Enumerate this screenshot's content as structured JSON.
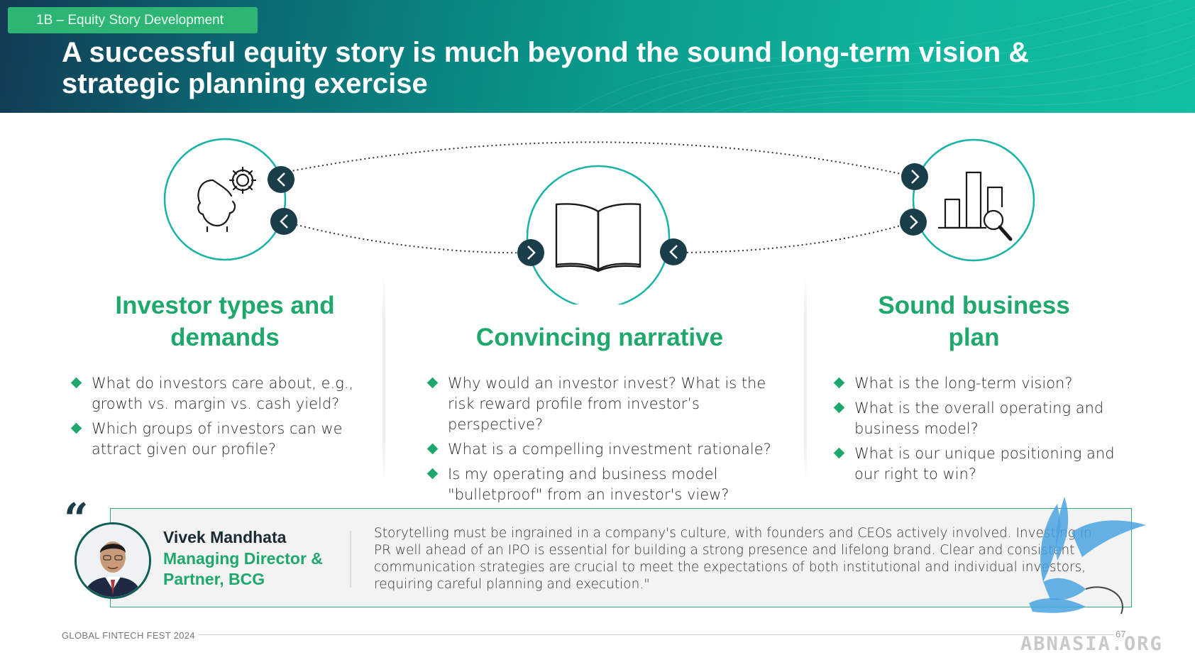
{
  "header": {
    "section_tag": "1B – Equity Story Development",
    "title": "A successful equity story is much beyond the sound long-term vision & strategic planning exercise"
  },
  "columns": [
    {
      "title": "Investor types and demands",
      "icon": "person-gear-icon",
      "bullets": [
        "What do investors care about, e.g., growth vs. margin vs. cash yield?",
        "Which groups of investors can we attract given our profile?"
      ]
    },
    {
      "title": "Convincing narrative",
      "icon": "open-book-icon",
      "bullets": [
        "Why would an investor invest? What is the risk reward profile from investor’s perspective?",
        "What is a compelling investment rationale?",
        "Is my operating and business model \"bulletproof\" from an investor's view?"
      ]
    },
    {
      "title": "Sound business plan",
      "icon": "bar-chart-magnifier-icon",
      "bullets": [
        "What is the long-term vision?",
        "What is the overall operating and business model?",
        "What is our unique positioning and our right to win?"
      ]
    }
  ],
  "quote": {
    "mark": "“",
    "speaker_name": "Vivek Mandhata",
    "speaker_role": "Managing Director & Partner, BCG",
    "text": "Storytelling must be ingrained in a company's culture, with founders and CEOs actively involved. Investing in PR well ahead of an IPO is essential for building a strong presence and lifelong brand. Clear and consistent communication strategies are crucial to meet the expectations of both institutional and individual investors, requiring careful planning and execution.\""
  },
  "footer": {
    "event": "GLOBAL FINTECH FEST 2024",
    "page_number": "67",
    "watermark": "ABNASIA.ORG"
  },
  "colors": {
    "accent_green": "#1fa86b",
    "teal": "#14b0a0",
    "dark_navy": "#1a3d4a"
  }
}
